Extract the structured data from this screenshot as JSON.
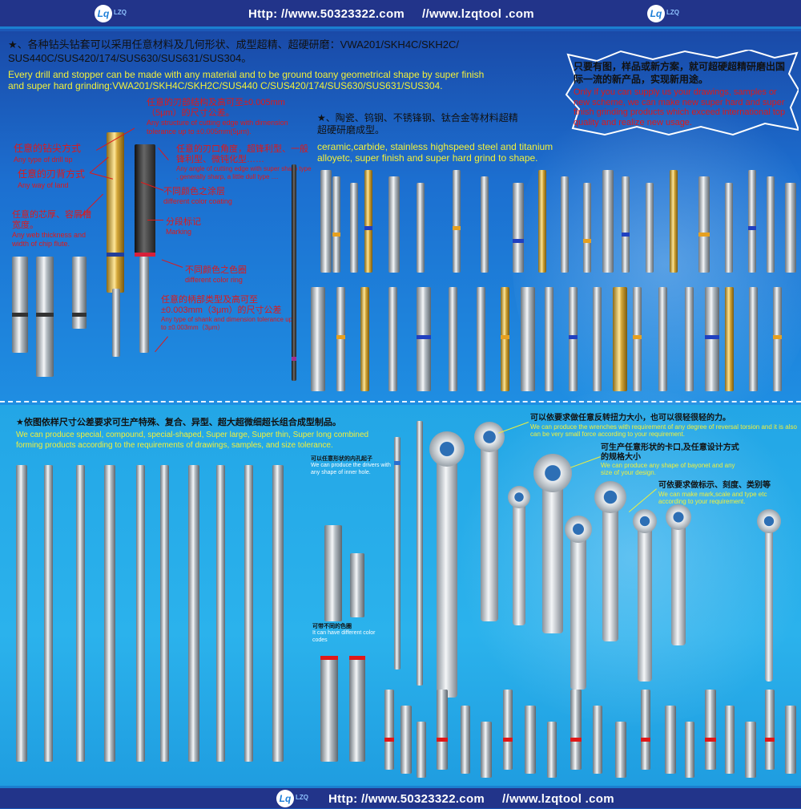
{
  "header": {
    "logo_text": "LZQ",
    "url1": "Http: //www.50323322.com",
    "url2": "//www.lzqtool .com"
  },
  "footer": {
    "logo_text": "LZQ",
    "url1": "Http: //www.50323322.com",
    "url2": "//www.lzqtool .com"
  },
  "intro": {
    "cn": "★、各种钻头钻套可以采用任意材料及几何形状、成型超精、超硬研磨：VWA201/SKH4C/SKH2C/ SUS440C/SUS420/174/SUS630/SUS631/SUS304。",
    "en": "Every drill and stopper can be made with any material and to be ground toany geometrical shape by super finish and super hard grinding:VWA201/SKH4C/SKH2C/SUS440 C/SUS420/174/SUS630/SUS631/SUS304."
  },
  "burst": {
    "cn": "只要有图，样品或新方案，就可超硬超精研磨出国际一流的新产品，实现新用途。",
    "en": "Only if you can supply us your drawings, samples or new scheme, we can make new super hard and super finish grinding products which exceed international top quality and realize new usage."
  },
  "materials": {
    "cn": "★、陶瓷、钨钢、不锈锋钢、钛合金等材料超精超硬研磨成型。",
    "en": "ceramic,carbide, stainless highspeed steel and titanium alloyetc, super finish and super hard grind to shape."
  },
  "callouts": [
    {
      "cn": "任意的刃部结构及高可至±0.005mm（5μm）的尺寸公差。",
      "en": "Any structure of cutting edge with dimension tolerance up to ±0.005mm(5μm)."
    },
    {
      "cn": "任意的钻尖方式",
      "en": "Any type of drill tip"
    },
    {
      "cn": "任意的刃背方式",
      "en": "Any way of land"
    },
    {
      "cn": "任意的芯厚、容屑槽宽度。",
      "en": "Any web thickness and width of chip flute."
    },
    {
      "cn": "任意的刃口角度，超锋利型、一般锋利型、微钝化型……",
      "en": "Any angle of cutting edge with super sharp type , generally sharp, a little dull type ...."
    },
    {
      "cn": "不同颜色之涂层",
      "en": "different color coating"
    },
    {
      "cn": "分段标记",
      "en": "Marking"
    },
    {
      "cn": "不同颜色之色圈",
      "en": "different color ring"
    },
    {
      "cn": "任意的柄部类型及高可至±0.003mm（3μm）的尺寸公差",
      "en": "Any type of shank and dimension tolerance up to ±0.003mm（3μm）"
    }
  ],
  "special": {
    "cn": "★依图依样尺寸公差要求可生产特殊、复合、异型、超大超微细超长组合成型制品。",
    "en": "We can produce special, compound, special-shaped, Super large, Super thin, Super long combined forming products according to the requirements of drawings, samples, and size tolerance."
  },
  "drivers": {
    "cn": "可以任意形状的内孔起子",
    "en": "We can produce the drivers with any shape of inner hole."
  },
  "color_codes": {
    "cn": "可带不同的色圈",
    "en": "It can have different color codes"
  },
  "wrench_notes": [
    {
      "cn": "可以依要求做任意反转扭力大小，也可以很轻很轻的力。",
      "en": "We can produce the wrenches with requirement of any degree of reversal torsion and it is also can be very small force according to your requirement."
    },
    {
      "cn": "可生产任意形状的卡口,及任意设计方式的规格大小",
      "en": "We can produce any shape of bayonet and any size of your design."
    },
    {
      "cn": "可依要求做标示、刻度、类别等",
      "en": "We can make mark,scale and type etc according to your requirement."
    }
  ],
  "colors": {
    "header_bg": "#22348a",
    "yellow_text": "#f2f03a",
    "red_text": "#e01818"
  }
}
